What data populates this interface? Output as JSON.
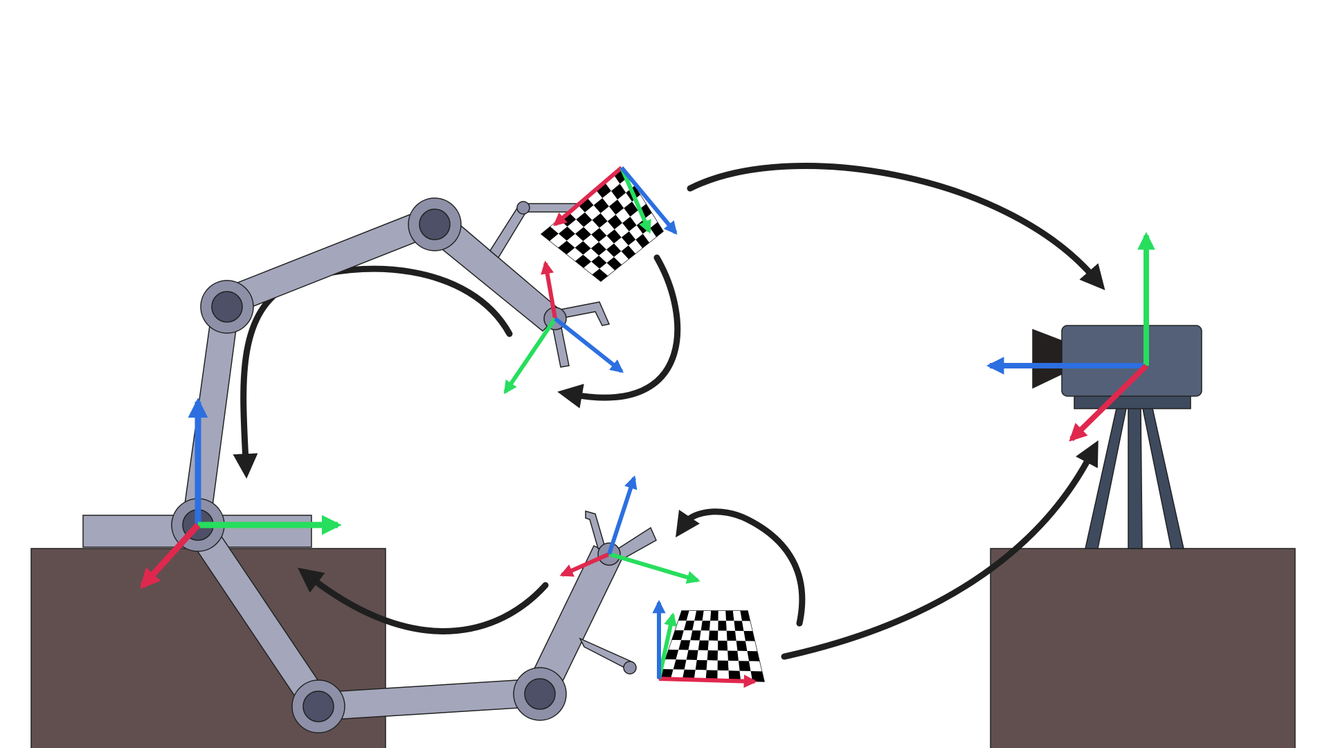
{
  "caption": "",
  "colors": {
    "background": "#ffffff",
    "table": "#614f4f",
    "robot_link": "#a4a6bb",
    "robot_joint": "#8e90a8",
    "joint_core": "#4e5068",
    "camera_body": "#536078",
    "camera_tripod": "#3e4a5e",
    "camera_lens": "#252020",
    "outline": "#222222",
    "arrow": "#1f1f1f",
    "axis_x": "#e0284e",
    "axis_y": "#27de5d",
    "axis_z": "#2c6fe0",
    "checker_dark": "#000000",
    "checker_light": "#ffffff"
  },
  "elements": {
    "tables": [
      "robot-table",
      "camera-table"
    ],
    "robot_poses": [
      "robot-arm-pose-1",
      "robot-arm-pose-2"
    ],
    "checkerboards": [
      "checkerboard-pose-1",
      "checkerboard-pose-2"
    ],
    "frames": [
      "base-frame",
      "gripper-frame-1",
      "gripper-frame-2",
      "target-frame-1",
      "target-frame-2",
      "camera-frame"
    ],
    "transform_arrows": [
      "arrow-gripper1-to-base",
      "arrow-target1-to-gripper1",
      "arrow-target1-to-camera",
      "arrow-camera-to-target2",
      "arrow-target2-to-gripper2",
      "arrow-gripper2-to-base"
    ],
    "icons": [
      "camera-icon",
      "tripod-icon"
    ]
  },
  "checkerboard": {
    "rows": 7,
    "cols": 9
  }
}
